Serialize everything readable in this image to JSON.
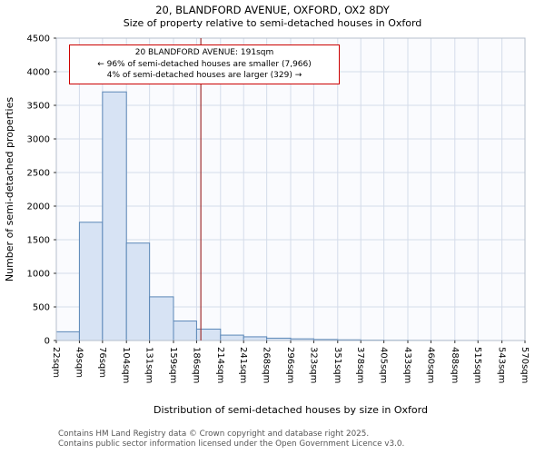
{
  "title": {
    "line1": "20, BLANDFORD AVENUE, OXFORD, OX2 8DY",
    "line2": "Size of property relative to semi-detached houses in Oxford"
  },
  "annotation": {
    "line1": "20 BLANDFORD AVENUE: 191sqm",
    "line2": "← 96% of semi-detached houses are smaller (7,966)",
    "line3": "4% of semi-detached houses are larger (329) →"
  },
  "footer": {
    "line1": "Contains HM Land Registry data © Crown copyright and database right 2025.",
    "line2": "Contains public sector information licensed under the Open Government Licence v3.0."
  },
  "chart_data": {
    "type": "bar",
    "title": "20, BLANDFORD AVENUE, OXFORD, OX2 8DY — Size of property relative to semi-detached houses in Oxford",
    "xlabel": "Distribution of semi-detached houses by size in Oxford",
    "ylabel": "Number of semi-detached properties",
    "bin_edges_sqm": [
      22,
      49,
      76,
      104,
      131,
      159,
      186,
      214,
      241,
      268,
      296,
      323,
      351,
      378,
      405,
      433,
      460,
      488,
      515,
      543,
      570
    ],
    "x_tick_labels": [
      "22sqm",
      "49sqm",
      "76sqm",
      "104sqm",
      "131sqm",
      "159sqm",
      "186sqm",
      "214sqm",
      "241sqm",
      "268sqm",
      "296sqm",
      "323sqm",
      "351sqm",
      "378sqm",
      "405sqm",
      "433sqm",
      "460sqm",
      "488sqm",
      "515sqm",
      "543sqm",
      "570sqm"
    ],
    "values": [
      130,
      1760,
      3700,
      1450,
      650,
      290,
      170,
      80,
      55,
      35,
      25,
      15,
      10,
      5,
      3,
      2,
      1,
      1,
      0,
      0
    ],
    "ylim": [
      0,
      4500
    ],
    "y_ticks": [
      0,
      500,
      1000,
      1500,
      2000,
      2500,
      3000,
      3500,
      4000,
      4500
    ],
    "marker_value_sqm": 191,
    "marker_smaller_pct": 96,
    "marker_smaller_count": 7966,
    "marker_larger_pct": 4,
    "marker_larger_count": 329,
    "grid": true,
    "legend": "none",
    "colors": {
      "bar_fill": "#d7e3f4",
      "bar_stroke": "#5b87b7",
      "grid": "#d4dcea",
      "spine": "#b6bfcc",
      "marker_line": "#a03030",
      "annotation_border": "#cc0000",
      "plot_bg": "#fafbfe"
    }
  }
}
